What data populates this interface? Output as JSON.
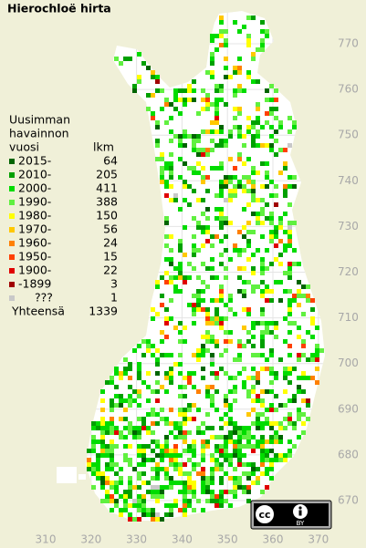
{
  "title": "Hierochloë hirta",
  "legend": {
    "header": [
      "Uusimman",
      "havainnon"
    ],
    "year_heading": "vuosi",
    "count_heading": "lkm",
    "entries": [
      {
        "label": "2015-",
        "count": 64,
        "color": "#006400"
      },
      {
        "label": "2010-",
        "count": 205,
        "color": "#00a000"
      },
      {
        "label": "2000-",
        "count": 411,
        "color": "#00dc00"
      },
      {
        "label": "1990-",
        "count": 388,
        "color": "#60f040"
      },
      {
        "label": "1980-",
        "count": 150,
        "color": "#ffff00"
      },
      {
        "label": "1970-",
        "count": 56,
        "color": "#ffc800"
      },
      {
        "label": "1960-",
        "count": 24,
        "color": "#ff8000"
      },
      {
        "label": "1950-",
        "count": 15,
        "color": "#ff4000"
      },
      {
        "label": "1900-",
        "count": 22,
        "color": "#e00000"
      },
      {
        "label": "-1899",
        "count": 3,
        "color": "#a00000"
      },
      {
        "label": "???",
        "count": 1,
        "color": "#c8c8c8"
      }
    ],
    "total_label": "Yhteensä",
    "total": 1339
  },
  "axes": {
    "xlim": [
      304,
      374
    ],
    "xticks": [
      310,
      320,
      330,
      340,
      350,
      360,
      370
    ],
    "ylim": [
      780,
      662
    ],
    "yticks": [
      770,
      760,
      750,
      740,
      730,
      720,
      710,
      700,
      690,
      680,
      670
    ]
  },
  "license": {
    "cc": "cc",
    "by": "BY"
  }
}
